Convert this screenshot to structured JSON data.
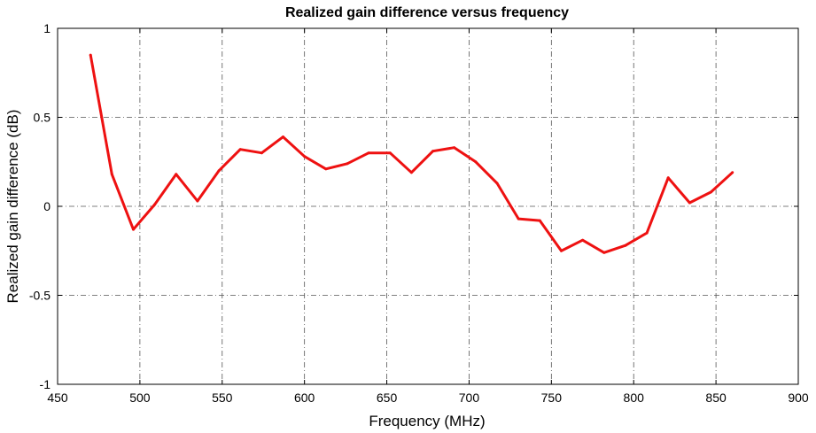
{
  "chart_data": {
    "type": "line",
    "title": "Realized gain difference versus frequency",
    "xlabel": "Frequency (MHz)",
    "ylabel": "Realized gain difference (dB)",
    "xlim": [
      450,
      900
    ],
    "ylim": [
      -1,
      1
    ],
    "xticks": [
      "450",
      "500",
      "550",
      "600",
      "650",
      "700",
      "750",
      "800",
      "850",
      "900"
    ],
    "yticks": [
      "-1",
      "-0.5",
      "0",
      "0.5",
      "1"
    ],
    "grid": true,
    "series": [
      {
        "color": "#ee1111",
        "x": [
          470,
          483,
          496,
          509,
          522,
          535,
          548,
          561,
          574,
          587,
          600,
          613,
          626,
          639,
          652,
          665,
          678,
          691,
          704,
          717,
          730,
          743,
          756,
          769,
          782,
          795,
          808,
          821,
          834,
          847,
          860
        ],
        "y": [
          0.85,
          0.18,
          -0.13,
          0.01,
          0.18,
          0.03,
          0.2,
          0.32,
          0.3,
          0.39,
          0.28,
          0.21,
          0.24,
          0.3,
          0.3,
          0.19,
          0.31,
          0.33,
          0.25,
          0.13,
          -0.07,
          -0.08,
          -0.25,
          -0.19,
          -0.26,
          -0.22,
          -0.15,
          0.16,
          0.02,
          0.08,
          0.19
        ]
      }
    ]
  }
}
